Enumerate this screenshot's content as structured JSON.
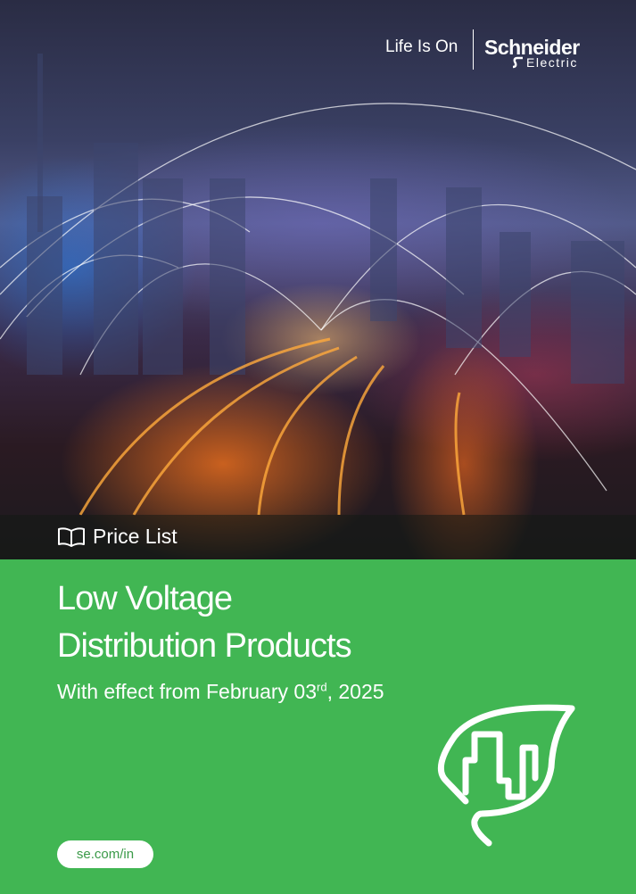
{
  "header": {
    "tagline": "Life Is On",
    "brand_name": "Schneider",
    "brand_sub": "Electric"
  },
  "band": {
    "icon": "open-book-icon",
    "label": "Price List"
  },
  "main": {
    "title_line1": "Low Voltage",
    "title_line2": "Distribution Products",
    "subtitle_prefix": "With effect from February 03",
    "subtitle_sup": "rd",
    "subtitle_suffix": ", 2025",
    "url": "se.com/in",
    "leaf_icon": "leaf-city-icon"
  },
  "colors": {
    "green": "#41b653",
    "white": "#ffffff"
  }
}
